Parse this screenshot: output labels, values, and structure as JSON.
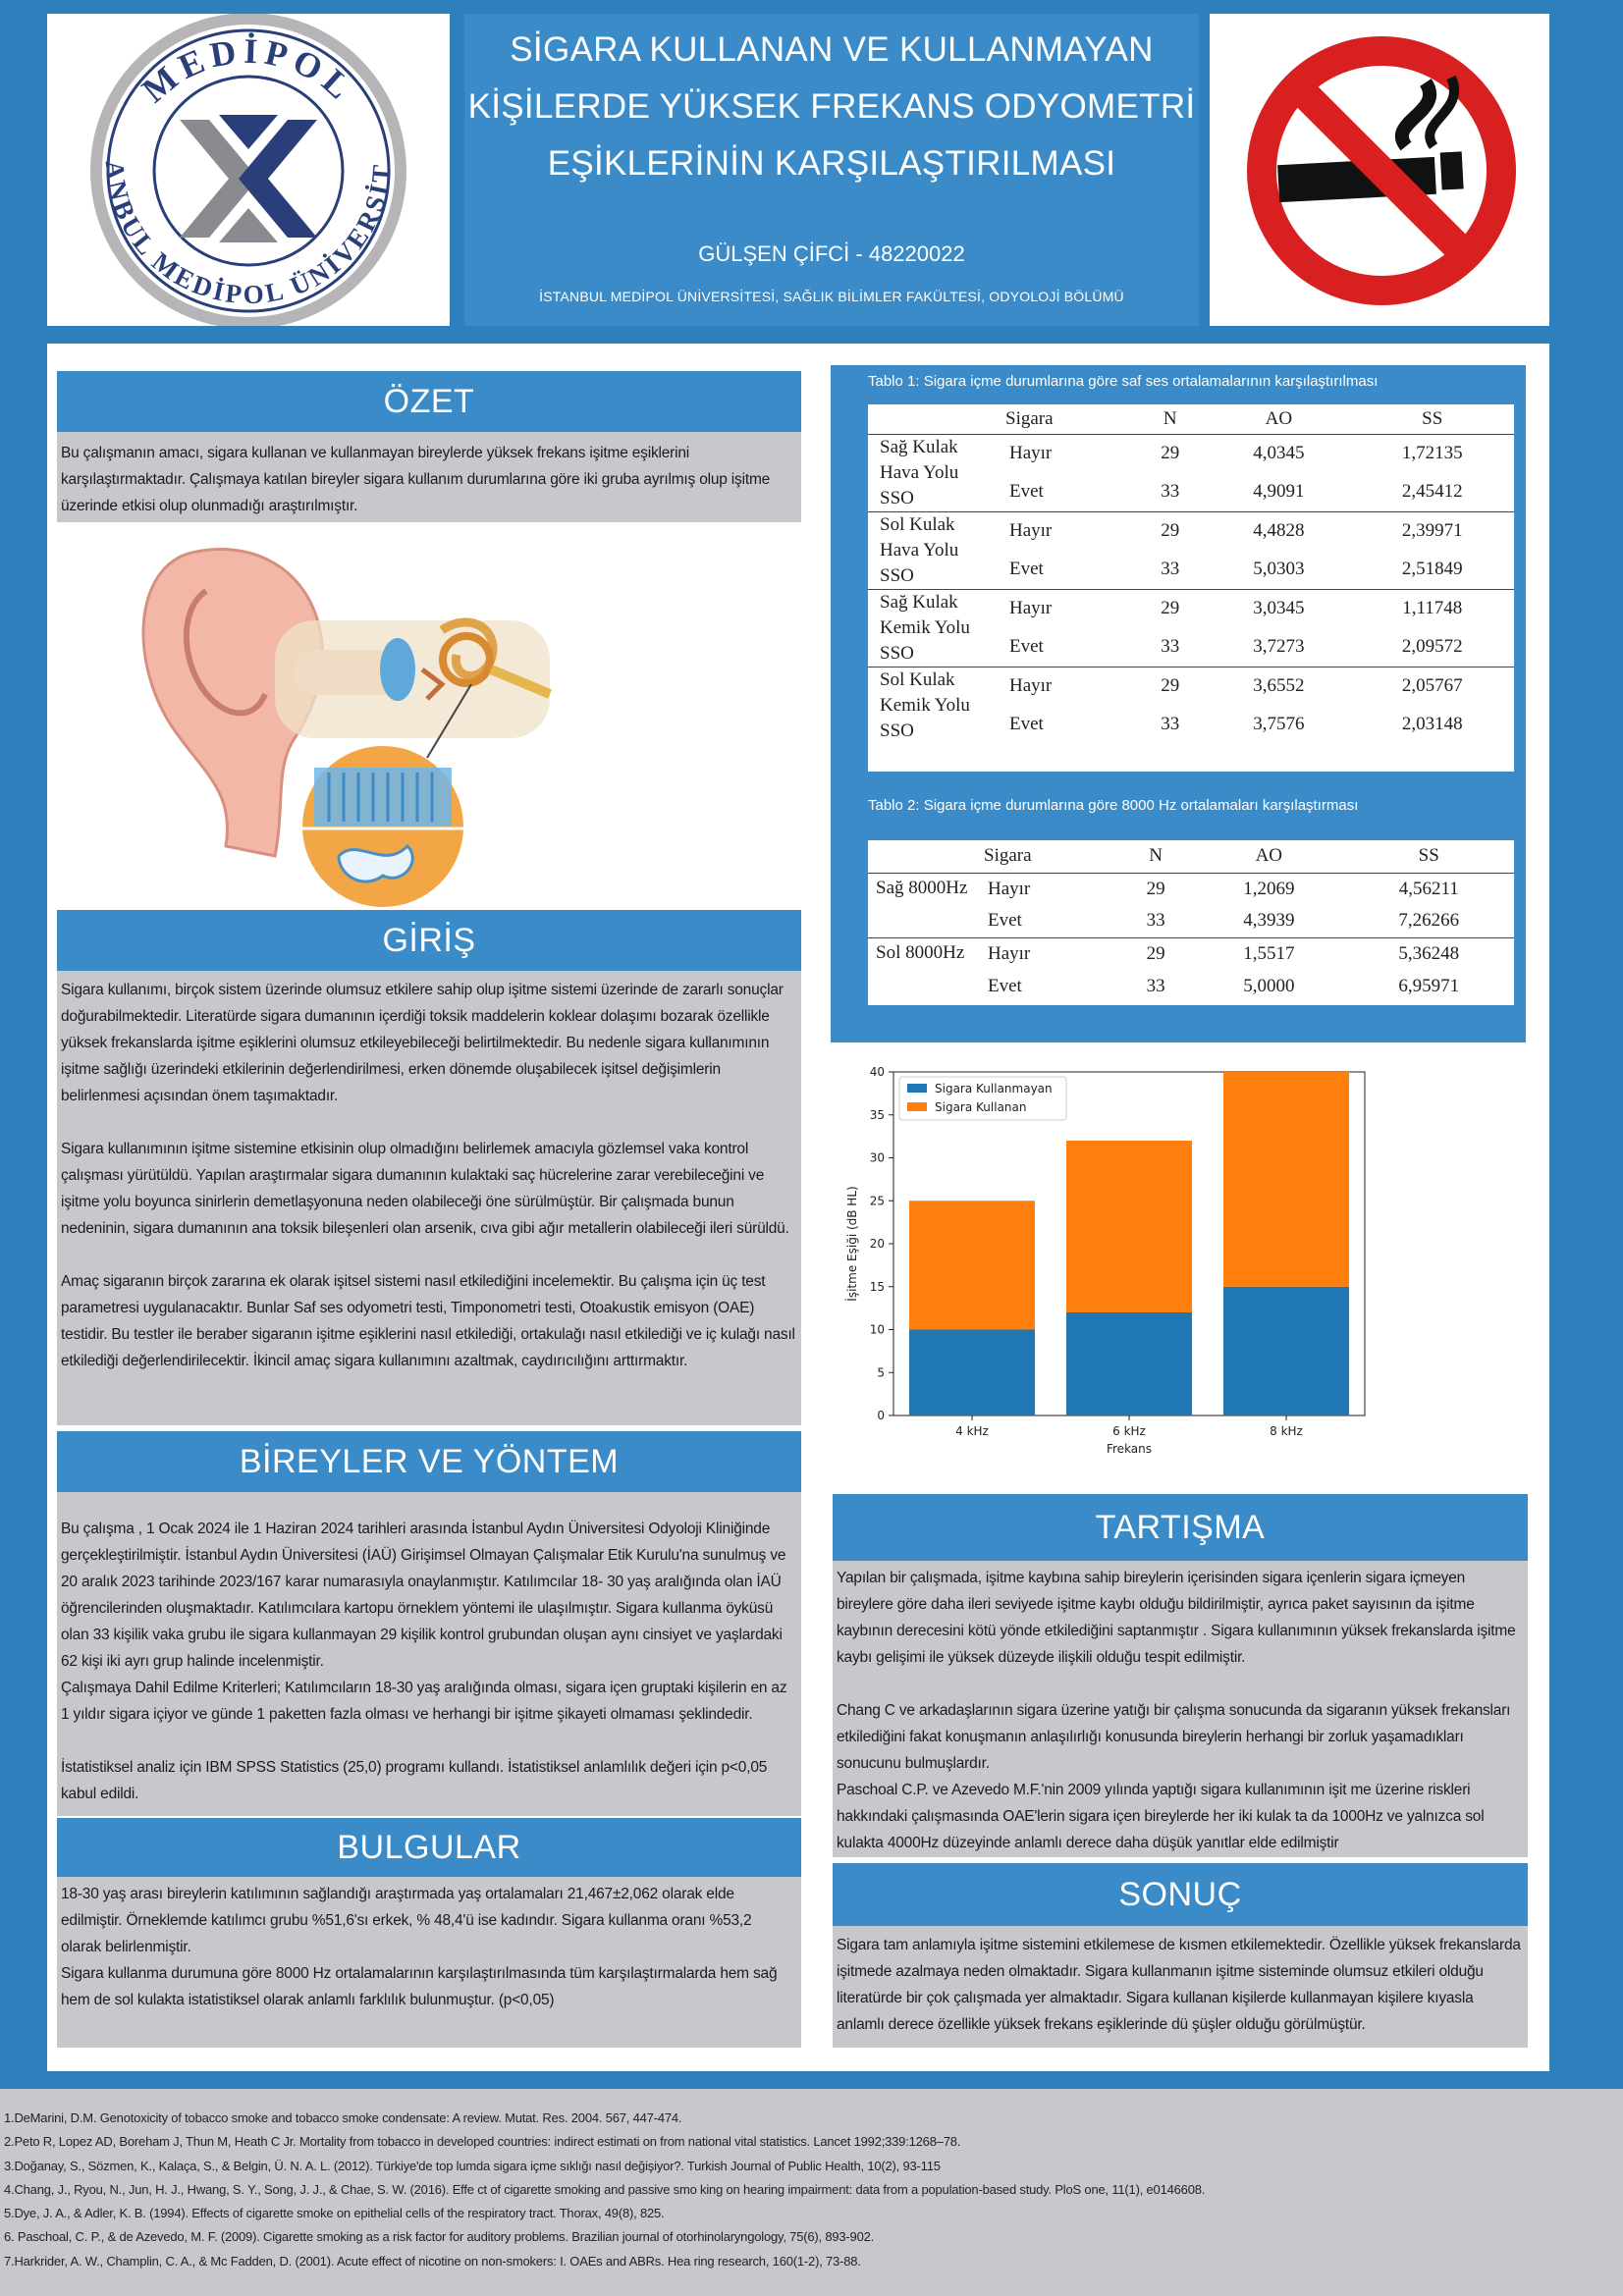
{
  "header": {
    "title_lines": [
      "SİGARA KULLANAN VE KULLANMAYAN",
      "KİŞİLERDE YÜKSEK FREKANS ODYOMETRİ",
      "EŞİKLERİNİN KARŞILAŞTIRILMASI"
    ],
    "author": "GÜLŞEN ÇİFCİ - 48220022",
    "affiliation": "İSTANBUL MEDİPOL ÜNİVERSİTESİ, SAĞLIK BİLİMLER FAKÜLTESİ, ODYOLOJİ BÖLÜMÜ",
    "logo": {
      "icon": "medipol-university-logo",
      "text_top": "MEDİPOL",
      "text_bottom": "İSTANBUL MEDİPOL ÜNİVERSİTESİ"
    },
    "no_smoking_icon": "no-smoking-icon"
  },
  "ozet": {
    "heading": "ÖZET",
    "text": "Bu çalışmanın amacı, sigara kullanan ve kullanmayan bireylerde yüksek frekans işitme eşiklerini karşılaştırmaktadır. Çalışmaya katılan bireyler sigara kullanım durumlarına göre iki gruba ayrılmış olup işitme üzerinde etkisi olup olunmadığı araştırılmıştır.",
    "image": "ear-anatomy-illustration"
  },
  "giris": {
    "heading": "GİRİŞ",
    "paragraphs": [
      "Sigara kullanımı, birçok sistem üzerinde olumsuz etkilere sahip olup işitme sistemi üzerinde de zararlı sonuçlar doğurabilmektedir. Literatürde sigara dumanının içerdiği toksik maddelerin koklear dolaşımı bozarak özellikle yüksek frekanslarda işitme eşiklerini olumsuz etkileyebileceği belirtilmektedir. Bu nedenle sigara kullanımının işitme sağlığı üzerindeki etkilerinin değerlendirilmesi, erken dönemde oluşabilecek işitsel değişimlerin belirlenmesi açısından önem taşımaktadır.",
      "Sigara kullanımının işitme sistemine etkisinin olup olmadığını belirlemek amacıyla gözlemsel vaka kontrol çalışması yürütüldü. Yapılan araştırmalar sigara dumanının kulaktaki saç hücrelerine zarar verebileceğini ve işitme yolu boyunca sinirlerin demetlaşyonuna neden olabileceği öne sürülmüştür. Bir çalışmada bunun nedeninin, sigara dumanının ana toksik bileşenleri olan arsenik, cıva gibi ağır metallerin olabileceği ileri sürüldü.",
      "Amaç sigaranın birçok zararına ek olarak işitsel sistemi nasıl etkilediğini incelemektir. Bu çalışma için üç test parametresi uygulanacaktır. Bunlar Saf ses odyometri testi, Timponometri testi, Otoakustik emisyon (OAE) testidir. Bu testler ile beraber sigaranın işitme eşiklerini nasıl etkilediği, ortakulağı nasıl etkilediği ve iç kulağı nasıl etkilediği değerlendirilecektir. İkincil amaç sigara kullanımını azaltmak, caydırıcılığını arttırmaktır."
    ]
  },
  "yontem": {
    "heading": "BİREYLER VE YÖNTEM",
    "paragraphs": [
      "Bu çalışma , 1 Ocak 2024 ile 1 Haziran 2024 tarihleri arasında İstanbul Aydın Üniversitesi Odyoloji Kliniğinde gerçekleştirilmiştir. İstanbul Aydın Üniversitesi (İAÜ) Girişimsel Olmayan Çalışmalar Etik Kurulu'na sunulmuş ve 20 aralık 2023 tarihinde 2023/167 karar numarasıyla onaylanmıştır. Katılımcılar 18- 30 yaş aralığında olan İAÜ öğrencilerinden oluşmaktadır. Katılımcılara kartopu örneklem yöntemi ile ulaşılmıştır. Sigara kullanma öyküsü olan 33 kişilik vaka grubu ile sigara kullanmayan 29 kişilik kontrol grubundan oluşan aynı cinsiyet ve yaşlardaki 62 kişi iki ayrı grup halinde incelenmiştir.",
      "Çalışmaya Dahil Edilme Kriterleri; Katılımcıların 18-30 yaş aralığında olması, sigara içen gruptaki kişilerin en az 1 yıldır sigara içiyor ve günde 1 paketten fazla olması ve herhangi bir işitme şikayeti olmaması şeklindedir.",
      "İstatistiksel analiz için IBM SPSS Statistics (25,0) programı kullandı. İstatistiksel anlamlılık değeri için p<0,05 kabul edildi."
    ]
  },
  "bulgular": {
    "heading": "BULGULAR",
    "paragraphs": [
      "18-30 yaş arası bireylerin katılımının sağlandığı araştırmada yaş ortalamaları 21,467±2,062 olarak elde edilmiştir. Örneklemde katılımcı grubu %51,6'sı erkek, % 48,4'ü ise kadındır. Sigara kullanma oranı %53,2 olarak belirlenmiştir.",
      "Sigara kullanma durumuna göre 8000 Hz ortalamalarının karşılaştırılmasında tüm karşılaştırmalarda hem sağ hem de sol kulakta istatistiksel olarak anlamlı farklılık bulunmuştur. (p<0,05)"
    ]
  },
  "table1": {
    "caption": "Tablo 1: Sigara içme durumlarına göre saf ses ortalamalarının karşılaştırılması",
    "headers": [
      "",
      "Sigara",
      "N",
      "AO",
      "SS"
    ],
    "groups": [
      {
        "label": "Sağ Kulak Hava Yolu SSO",
        "rows": [
          [
            "Hayır",
            "29",
            "4,0345",
            "1,72135"
          ],
          [
            "Evet",
            "33",
            "4,9091",
            "2,45412"
          ]
        ]
      },
      {
        "label": "Sol Kulak Hava Yolu SSO",
        "rows": [
          [
            "Hayır",
            "29",
            "4,4828",
            "2,39971"
          ],
          [
            "Evet",
            "33",
            "5,0303",
            "2,51849"
          ]
        ]
      },
      {
        "label": "Sağ Kulak Kemik Yolu SSO",
        "rows": [
          [
            "Hayır",
            "29",
            "3,0345",
            "1,11748"
          ],
          [
            "Evet",
            "33",
            "3,7273",
            "2,09572"
          ]
        ]
      },
      {
        "label": "Sol Kulak Kemik Yolu SSO",
        "rows": [
          [
            "Hayır",
            "29",
            "3,6552",
            "2,05767"
          ],
          [
            "Evet",
            "33",
            "3,7576",
            "2,03148"
          ]
        ]
      }
    ]
  },
  "table2": {
    "caption": "Tablo 2: Sigara içme durumlarına göre 8000 Hz ortalamaları karşılaştırması",
    "headers": [
      "",
      "Sigara",
      "N",
      "AO",
      "SS"
    ],
    "groups": [
      {
        "label": "Sağ 8000Hz",
        "rows": [
          [
            "Hayır",
            "29",
            "1,2069",
            "4,56211"
          ],
          [
            "Evet",
            "33",
            "4,3939",
            "7,26266"
          ]
        ]
      },
      {
        "label": "Sol 8000Hz",
        "rows": [
          [
            "Hayır",
            "29",
            "1,5517",
            "5,36248"
          ],
          [
            "Evet",
            "33",
            "5,0000",
            "6,95971"
          ]
        ]
      }
    ]
  },
  "chart_data": {
    "type": "bar",
    "stacked": true,
    "categories": [
      "4 kHz",
      "6 kHz",
      "8 kHz"
    ],
    "series": [
      {
        "name": "Sigara Kullanmayan",
        "values": [
          10,
          12,
          15
        ],
        "color": "#1f77b4"
      },
      {
        "name": "Sigara Kullanan",
        "values": [
          15,
          20,
          25
        ],
        "color": "#ff7f0e"
      }
    ],
    "xlabel": "Frekans",
    "ylabel": "İşitme Eşiği (dB HL)",
    "ylim": [
      0,
      40
    ],
    "yticks": [
      "0",
      "5",
      "10",
      "15",
      "20",
      "25",
      "30",
      "35",
      "40"
    ],
    "legend": "top-left",
    "grid": false
  },
  "tartisma": {
    "heading": "TARTIŞMA",
    "paragraphs": [
      "Yapılan bir çalışmada, işitme kaybına sahip bireylerin içerisinden sigara içenlerin sigara içmeyen bireylere göre daha ileri seviyede işitme kaybı olduğu bildirilmiştir, ayrıca paket sayısının da işitme kaybının derecesini kötü yönde etkilediğini saptanmıştır . Sigara kullanımının yüksek frekanslarda işitme kaybı gelişimi ile yüksek düzeyde ilişkili olduğu tespit edilmiştir.",
      "Chang C ve arkadaşlarının sigara üzerine yatığı bir çalışma sonucunda da sigaranın yüksek frekansları etkilediğini fakat konuşmanın anlaşılırlığı konusunda bireylerin herhangi bir zorluk yaşamadıkları sonucunu bulmuşlardır.",
      "Paschoal C.P. ve Azevedo M.F.'nin 2009 yılında yaptığı sigara kullanımının işit me üzerine riskleri hakkındaki çalışmasında OAE'lerin sigara içen bireylerde her iki kulak ta da 1000Hz ve yalnızca sol kulakta 4000Hz düzeyinde anlamlı derece daha düşük yanıtlar elde edilmiştir"
    ]
  },
  "sonuc": {
    "heading": "SONUÇ",
    "text": "Sigara tam anlamıyla işitme sistemini etkilemese de kısmen etkilemektedir. Özellikle yüksek frekanslarda işitmede azalmaya neden olmaktadır. Sigara kullanmanın işitme sisteminde olumsuz etkileri olduğu literatürde bir çok çalışmada yer almaktadır. Sigara kullanan kişilerde kullanmayan kişilere kıyasla anlamlı derece özellikle yüksek frekans eşiklerinde dü şüşler olduğu görülmüştür."
  },
  "references": [
    "1.DeMarini, D.M. Genotoxicity of tobacco smoke and tobacco smoke condensate: A review. Mutat. Res. 2004. 567, 447-474.",
    "2.Peto R, Lopez AD, Boreham J, Thun M, Heath C Jr. Mortality from tobacco in developed countries: indirect estimati on from national vital statistics. Lancet 1992;339:1268–78.",
    "3.Doğanay, S., Sözmen, K., Kalaça, S., & Belgin, Ü. N. A. L. (2012). Türkiye'de top lumda sigara içme sıklığı nasıl değişiyor?. Turkish Journal of Public Health, 10(2), 93-115",
    "4.Chang, J., Ryou, N., Jun, H. J., Hwang, S. Y., Song, J. J., & Chae, S. W. (2016). Effe ct of cigarette smoking and passive smo king on hearing impairment: data from a population-based study. PloS one, 11(1), e0146608.",
    "5.Dye, J. A., & Adler, K. B. (1994). Effects of cigarette smoke on epithelial cells of the respiratory tract. Thorax, 49(8), 825.",
    "6. Paschoal, C. P., & de Azevedo, M. F. (2009). Cigarette smoking as a risk factor for auditory problems. Brazilian journal of otorhinolaryngology, 75(6), 893-902.",
    "7.Harkrider, A. W., Champlin, C. A., & Mc Fadden, D. (2001). Acute effect of nicotine on non-smokers: I. OAEs and ABRs. Hea ring research, 160(1-2), 73-88."
  ]
}
